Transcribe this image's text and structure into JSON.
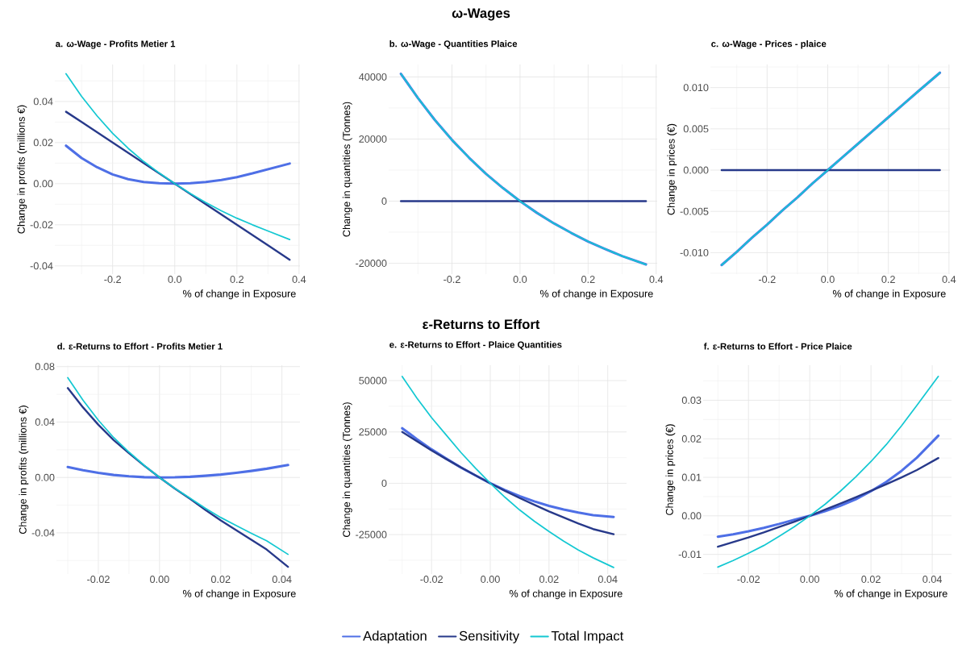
{
  "chart_data": [
    {
      "type": "line",
      "title": "a. ω-Wage - Profits Metier 1",
      "xlabel": "% of change in Exposure",
      "ylabel": "Change in profits (millions €)",
      "annotations": [
        "ω-Wages"
      ],
      "grid": true,
      "x": [
        -0.35,
        -0.3,
        -0.25,
        -0.2,
        -0.15,
        -0.1,
        -0.05,
        0,
        0.05,
        0.1,
        0.15,
        0.2,
        0.25,
        0.3,
        0.37
      ],
      "series": [
        {
          "color": "#4e6fe6",
          "values": [
            0.0185,
            0.0125,
            0.008,
            0.0045,
            0.0022,
            0.0008,
            0.0002,
            0,
            0.0002,
            0.0008,
            0.0018,
            0.0032,
            0.005,
            0.007,
            0.0098
          ]
        },
        {
          "color": "#27398a",
          "values": [
            0.035,
            0.03,
            0.025,
            0.02,
            0.015,
            0.01,
            0.005,
            0,
            -0.005,
            -0.01,
            -0.015,
            -0.02,
            -0.025,
            -0.03,
            -0.037
          ]
        },
        {
          "color": "#14c8d2",
          "values": [
            0.0535,
            0.0425,
            0.033,
            0.0245,
            0.0172,
            0.0108,
            0.0052,
            0,
            -0.0048,
            -0.0092,
            -0.0132,
            -0.0168,
            -0.02,
            -0.023,
            -0.0272
          ]
        }
      ],
      "xlim": [
        -0.386,
        0.403
      ],
      "ylim": [
        -0.044,
        0.058
      ],
      "xticks": [
        {
          "value": -0.2,
          "label": "-0.2"
        },
        {
          "value": 0,
          "label": "0.0"
        },
        {
          "value": 0.2,
          "label": "0.2"
        },
        {
          "value": 0.4,
          "label": "0.4"
        }
      ],
      "yticks": [
        {
          "value": -0.04,
          "label": "-0.04"
        },
        {
          "value": -0.02,
          "label": "-0.02"
        },
        {
          "value": 0,
          "label": "0.00"
        },
        {
          "value": 0.02,
          "label": "0.02"
        },
        {
          "value": 0.04,
          "label": "0.04"
        }
      ]
    },
    {
      "type": "line",
      "title": "b. ω-Wage - Quantities Plaice",
      "xlabel": "% of change in Exposure",
      "ylabel": "Change in quantities (Tonnes)",
      "grid": true,
      "x": [
        -0.35,
        -0.3,
        -0.25,
        -0.2,
        -0.15,
        -0.1,
        -0.05,
        0,
        0.05,
        0.1,
        0.15,
        0.2,
        0.25,
        0.3,
        0.37
      ],
      "series": [
        {
          "color": "#4e6fe6",
          "values": [
            41000,
            33200,
            26100,
            19700,
            14000,
            8800,
            4200,
            0,
            -3800,
            -7200,
            -10200,
            -13000,
            -15400,
            -17700,
            -20400
          ]
        },
        {
          "color": "#27398a",
          "values": [
            0,
            0,
            0,
            0,
            0,
            0,
            0,
            0,
            0,
            0,
            0,
            0,
            0,
            0,
            0
          ]
        },
        {
          "color": "#14c8d2",
          "values": [
            41000,
            33200,
            26100,
            19700,
            14000,
            8800,
            4200,
            0,
            -3800,
            -7200,
            -10200,
            -13000,
            -15400,
            -17700,
            -20400
          ]
        }
      ],
      "xlim": [
        -0.386,
        0.403
      ],
      "ylim": [
        -23500,
        44000
      ],
      "xticks": [
        {
          "value": -0.2,
          "label": "-0.2"
        },
        {
          "value": 0,
          "label": "0.0"
        },
        {
          "value": 0.2,
          "label": "0.2"
        },
        {
          "value": 0.4,
          "label": "0.4"
        }
      ],
      "yticks": [
        -20000,
        0,
        20000,
        40000
      ]
    },
    {
      "type": "line",
      "title": "c. ω-Wage - Prices - plaice",
      "xlabel": "% of change in Exposure",
      "ylabel": "Change in prices (€)",
      "grid": true,
      "x": [
        -0.35,
        -0.3,
        -0.25,
        -0.2,
        -0.15,
        -0.1,
        -0.05,
        0,
        0.05,
        0.1,
        0.15,
        0.2,
        0.25,
        0.3,
        0.37
      ],
      "series": [
        {
          "color": "#4e6fe6",
          "values": [
            -0.0115,
            -0.0099,
            -0.0082,
            -0.0066,
            -0.0049,
            -0.0033,
            -0.0016,
            0,
            0.0016,
            0.0032,
            0.0048,
            0.0064,
            0.008,
            0.0096,
            0.0118
          ]
        },
        {
          "color": "#27398a",
          "values": [
            0,
            0,
            0,
            0,
            0,
            0,
            0,
            0,
            0,
            0,
            0,
            0,
            0,
            0,
            0
          ]
        },
        {
          "color": "#14c8d2",
          "values": [
            -0.0115,
            -0.0099,
            -0.0082,
            -0.0066,
            -0.0049,
            -0.0033,
            -0.0016,
            0,
            0.0016,
            0.0032,
            0.0048,
            0.0064,
            0.008,
            0.0096,
            0.0118
          ]
        }
      ],
      "xlim": [
        -0.387,
        0.403
      ],
      "ylim": [
        -0.0126,
        0.0128
      ],
      "xticks": [
        {
          "value": -0.2,
          "label": "-0.2"
        },
        {
          "value": 0,
          "label": "0.0"
        },
        {
          "value": 0.2,
          "label": "0.2"
        },
        {
          "value": 0.4,
          "label": "0.4"
        }
      ],
      "yticks": [
        {
          "value": -0.01,
          "label": "-0.010"
        },
        {
          "value": -0.005,
          "label": "-0.005"
        },
        {
          "value": 0,
          "label": "0.000"
        },
        {
          "value": 0.005,
          "label": "0.005"
        },
        {
          "value": 0.01,
          "label": "0.010"
        }
      ]
    },
    {
      "type": "line",
      "title": "d. ε-Returns to Effort - Profits Metier 1",
      "xlabel": "% of change in Exposure",
      "ylabel": "Change in profits (millions €)",
      "annotations": [
        "ε-Returns to Effort"
      ],
      "grid": true,
      "x": [
        -0.03,
        -0.025,
        -0.02,
        -0.015,
        -0.01,
        -0.005,
        0,
        0.005,
        0.01,
        0.015,
        0.02,
        0.025,
        0.03,
        0.035,
        0.042
      ],
      "series": [
        {
          "color": "#4e6fe6",
          "values": [
            0.0075,
            0.0052,
            0.0033,
            0.0018,
            0.0008,
            0.0002,
            0,
            0.0001,
            0.0005,
            0.0012,
            0.0021,
            0.0033,
            0.0047,
            0.0063,
            0.009
          ]
        },
        {
          "color": "#27398a",
          "values": [
            0.0645,
            0.0505,
            0.038,
            0.027,
            0.0175,
            0.0085,
            0,
            -0.008,
            -0.0155,
            -0.0235,
            -0.031,
            -0.038,
            -0.045,
            -0.052,
            -0.0645
          ]
        },
        {
          "color": "#14c8d2",
          "values": [
            0.072,
            0.0557,
            0.0413,
            0.0288,
            0.0183,
            0.0087,
            0,
            -0.0079,
            -0.015,
            -0.0223,
            -0.0289,
            -0.0347,
            -0.0403,
            -0.0457,
            -0.0555
          ]
        }
      ],
      "xlim": [
        -0.0337,
        0.0459
      ],
      "ylim": [
        -0.0697,
        0.081
      ],
      "xticks": [
        {
          "value": -0.02,
          "label": "-0.02"
        },
        {
          "value": 0,
          "label": "0.00"
        },
        {
          "value": 0.02,
          "label": "0.02"
        },
        {
          "value": 0.04,
          "label": "0.04"
        }
      ],
      "yticks": [
        {
          "value": -0.04,
          "label": "-0.04"
        },
        {
          "value": 0,
          "label": "0.00"
        },
        {
          "value": 0.04,
          "label": "0.04"
        },
        {
          "value": 0.08,
          "label": "0.08"
        }
      ]
    },
    {
      "type": "line",
      "title": "e. ε-Returns to Effort - Plaice Quantities",
      "xlabel": "% of change in Exposure",
      "ylabel": "Change in quantities (Tonnes)",
      "grid": true,
      "legend": "bottom",
      "x": [
        -0.03,
        -0.025,
        -0.02,
        -0.015,
        -0.01,
        -0.005,
        0,
        0.005,
        0.01,
        0.015,
        0.02,
        0.025,
        0.03,
        0.035,
        0.042
      ],
      "series": [
        {
          "name": "Adaptation",
          "color": "#4e6fe6",
          "values": [
            26800,
            21500,
            16500,
            12000,
            7700,
            3800,
            0,
            -3300,
            -6300,
            -8800,
            -11000,
            -12800,
            -14300,
            -15500,
            -16400
          ]
        },
        {
          "name": "Sensitivity",
          "color": "#27398a",
          "values": [
            25000,
            20500,
            16000,
            11800,
            7700,
            3800,
            0,
            -3700,
            -7200,
            -10500,
            -13700,
            -16700,
            -19600,
            -22300,
            -24800
          ]
        },
        {
          "name": "Total Impact",
          "color": "#14c8d2",
          "values": [
            52000,
            41500,
            32000,
            23500,
            15000,
            7300,
            0,
            -6800,
            -13000,
            -18500,
            -23500,
            -28200,
            -32500,
            -36300,
            -41000
          ]
        }
      ],
      "xlim": [
        -0.0346,
        0.0464
      ],
      "ylim": [
        -44200,
        57500
      ],
      "xticks": [
        {
          "value": -0.02,
          "label": "-0.02"
        },
        {
          "value": 0,
          "label": "0.00"
        },
        {
          "value": 0.02,
          "label": "0.02"
        },
        {
          "value": 0.04,
          "label": "0.04"
        }
      ],
      "yticks": [
        -25000,
        0,
        25000,
        50000
      ]
    },
    {
      "type": "line",
      "title": "f. ε-Returns to Effort - Price Plaice",
      "xlabel": "% of change in Exposure",
      "ylabel": "Change in prices (€)",
      "grid": true,
      "x": [
        -0.03,
        -0.025,
        -0.02,
        -0.015,
        -0.01,
        -0.005,
        0,
        0.005,
        0.01,
        0.015,
        0.02,
        0.025,
        0.03,
        0.035,
        0.042
      ],
      "series": [
        {
          "color": "#4e6fe6",
          "values": [
            -0.0054,
            -0.0048,
            -0.004,
            -0.0031,
            -0.0021,
            -0.001,
            0,
            0.0012,
            0.0026,
            0.0043,
            0.0064,
            0.0088,
            0.0117,
            0.0151,
            0.0208
          ]
        },
        {
          "color": "#27398a",
          "values": [
            -0.008,
            -0.0068,
            -0.0056,
            -0.0043,
            -0.0029,
            -0.0015,
            0,
            0.0016,
            0.0032,
            0.0048,
            0.0065,
            0.0082,
            0.01,
            0.0119,
            0.015
          ]
        },
        {
          "color": "#14c8d2",
          "values": [
            -0.0133,
            -0.0116,
            -0.0097,
            -0.0077,
            -0.0053,
            -0.0028,
            0,
            0.003,
            0.0064,
            0.0101,
            0.0141,
            0.0185,
            0.0234,
            0.0287,
            0.0362
          ]
        }
      ],
      "xlim": [
        -0.0348,
        0.0463
      ],
      "ylim": [
        -0.0151,
        0.0391
      ],
      "xticks": [
        {
          "value": -0.02,
          "label": "-0.02"
        },
        {
          "value": 0,
          "label": "0.00"
        },
        {
          "value": 0.02,
          "label": "0.02"
        },
        {
          "value": 0.04,
          "label": "0.04"
        }
      ],
      "yticks": [
        {
          "value": -0.01,
          "label": "-0.01"
        },
        {
          "value": 0,
          "label": "0.00"
        },
        {
          "value": 0.01,
          "label": "0.01"
        },
        {
          "value": 0.02,
          "label": "0.02"
        },
        {
          "value": 0.03,
          "label": "0.03"
        }
      ]
    }
  ]
}
